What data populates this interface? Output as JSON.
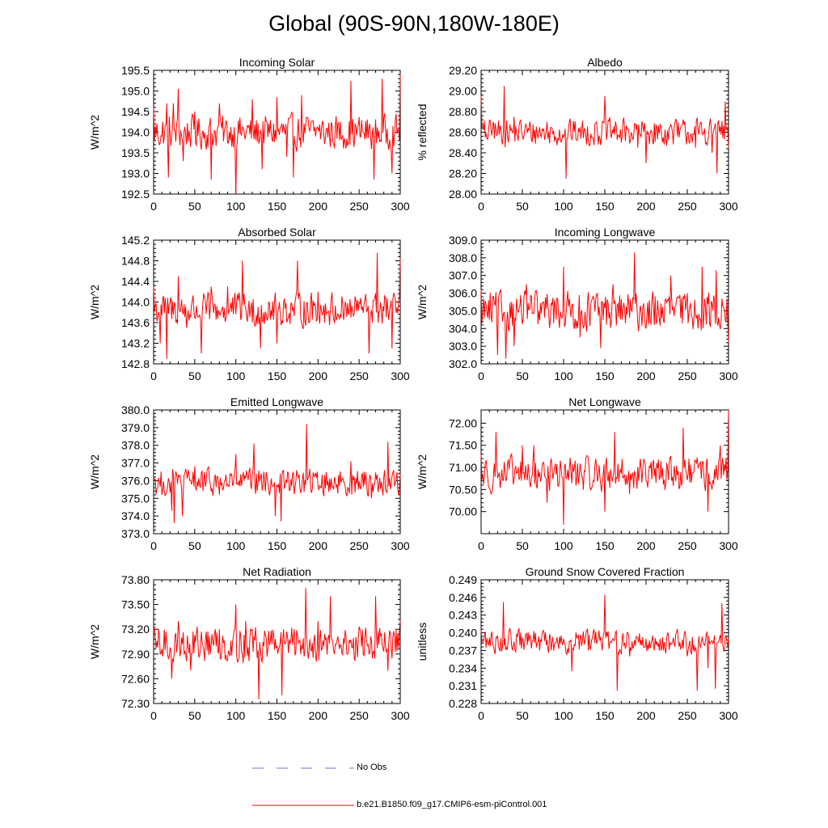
{
  "figure": {
    "title": "Global (90S-90N,180W-180E)",
    "line_color": "#ff0000",
    "obs_color": "#6a73d6"
  },
  "legend": {
    "obs_label": "No Obs",
    "model_label": "b.e21.B1850.f09_g17.CMIP6-esm-piControl.001"
  },
  "chart_data": [
    {
      "type": "line",
      "title": "Incoming Solar",
      "xlabel": "",
      "ylabel": "W/m^2",
      "xlim": [
        0,
        300
      ],
      "ylim": [
        192.5,
        195.5
      ],
      "x_ticks": [
        0,
        50,
        100,
        150,
        200,
        250,
        300
      ],
      "y_ticks": [
        192.5,
        193.0,
        193.5,
        194.0,
        194.5,
        195.0,
        195.5
      ],
      "y_tick_labels": [
        "192.5",
        "193.0",
        "193.5",
        "194.0",
        "194.5",
        "195.0",
        "195.5"
      ],
      "baseline": 194.0,
      "noise": 0.38,
      "keypoints": [
        [
          0,
          194.6
        ],
        [
          10,
          193.9
        ],
        [
          16,
          194.7
        ],
        [
          18,
          192.9
        ],
        [
          24,
          194.7
        ],
        [
          30,
          195.05
        ],
        [
          36,
          193.3
        ],
        [
          50,
          194.5
        ],
        [
          62,
          194.0
        ],
        [
          70,
          192.85
        ],
        [
          80,
          194.7
        ],
        [
          100,
          192.5
        ],
        [
          120,
          194.8
        ],
        [
          132,
          193.1
        ],
        [
          150,
          194.85
        ],
        [
          162,
          193.4
        ],
        [
          170,
          192.9
        ],
        [
          180,
          194.9
        ],
        [
          200,
          194.1
        ],
        [
          240,
          195.25
        ],
        [
          255,
          194.0
        ],
        [
          268,
          192.85
        ],
        [
          278,
          195.3
        ],
        [
          290,
          193.0
        ],
        [
          300,
          195.4
        ]
      ],
      "series": [
        {
          "name": "b.e21.B1850.f09_g17.CMIP6-esm-piControl.001",
          "color": "#ff0000"
        }
      ]
    },
    {
      "type": "line",
      "title": "Albedo",
      "xlabel": "",
      "ylabel": "% reflected",
      "xlim": [
        0,
        300
      ],
      "ylim": [
        28.0,
        29.2
      ],
      "x_ticks": [
        0,
        50,
        100,
        150,
        200,
        250,
        300
      ],
      "y_ticks": [
        28.0,
        28.2,
        28.4,
        28.6,
        28.8,
        29.0,
        29.2
      ],
      "y_tick_labels": [
        "28.00",
        "28.20",
        "28.40",
        "28.60",
        "28.80",
        "29.00",
        "29.20"
      ],
      "baseline": 28.6,
      "noise": 0.12,
      "keypoints": [
        [
          0,
          28.95
        ],
        [
          5,
          28.55
        ],
        [
          15,
          28.7
        ],
        [
          28,
          29.05
        ],
        [
          40,
          28.75
        ],
        [
          60,
          28.65
        ],
        [
          80,
          28.7
        ],
        [
          100,
          28.55
        ],
        [
          103,
          28.15
        ],
        [
          120,
          28.65
        ],
        [
          140,
          28.7
        ],
        [
          150,
          28.95
        ],
        [
          170,
          28.5
        ],
        [
          190,
          28.45
        ],
        [
          200,
          28.3
        ],
        [
          220,
          28.5
        ],
        [
          240,
          28.55
        ],
        [
          260,
          28.45
        ],
        [
          280,
          28.4
        ],
        [
          286,
          28.2
        ],
        [
          296,
          28.9
        ],
        [
          300,
          28.45
        ]
      ],
      "series": [
        {
          "name": "b.e21.B1850.f09_g17.CMIP6-esm-piControl.001",
          "color": "#ff0000"
        }
      ]
    },
    {
      "type": "line",
      "title": "Absorbed Solar",
      "xlabel": "",
      "ylabel": "W/m^2",
      "xlim": [
        0,
        300
      ],
      "ylim": [
        142.8,
        145.2
      ],
      "x_ticks": [
        0,
        50,
        100,
        150,
        200,
        250,
        300
      ],
      "y_ticks": [
        142.8,
        143.2,
        143.6,
        144.0,
        144.4,
        144.8,
        145.2
      ],
      "y_tick_labels": [
        "142.8",
        "143.2",
        "143.6",
        "144.0",
        "144.4",
        "144.8",
        "145.2"
      ],
      "baseline": 143.85,
      "noise": 0.3,
      "keypoints": [
        [
          0,
          144.3
        ],
        [
          8,
          143.2
        ],
        [
          16,
          142.9
        ],
        [
          30,
          144.5
        ],
        [
          40,
          143.5
        ],
        [
          58,
          143.0
        ],
        [
          70,
          144.3
        ],
        [
          90,
          144.3
        ],
        [
          108,
          144.8
        ],
        [
          120,
          143.6
        ],
        [
          130,
          143.1
        ],
        [
          140,
          144.0
        ],
        [
          150,
          143.2
        ],
        [
          175,
          144.8
        ],
        [
          200,
          144.2
        ],
        [
          230,
          144.0
        ],
        [
          250,
          144.0
        ],
        [
          262,
          143.0
        ],
        [
          272,
          144.95
        ],
        [
          290,
          143.1
        ],
        [
          300,
          144.85
        ]
      ],
      "series": [
        {
          "name": "b.e21.B1850.f09_g17.CMIP6-esm-piControl.001",
          "color": "#ff0000"
        }
      ]
    },
    {
      "type": "line",
      "title": "Incoming Longwave",
      "xlabel": "",
      "ylabel": "W/m^2",
      "xlim": [
        0,
        300
      ],
      "ylim": [
        302.0,
        309.0
      ],
      "x_ticks": [
        0,
        50,
        100,
        150,
        200,
        250,
        300
      ],
      "y_ticks": [
        302.0,
        303.0,
        304.0,
        305.0,
        306.0,
        307.0,
        308.0,
        309.0
      ],
      "y_tick_labels": [
        "302.0",
        "303.0",
        "304.0",
        "305.0",
        "306.0",
        "307.0",
        "308.0",
        "309.0"
      ],
      "baseline": 305.0,
      "noise": 1.0,
      "keypoints": [
        [
          0,
          306.2
        ],
        [
          10,
          304.5
        ],
        [
          20,
          302.5
        ],
        [
          30,
          302.3
        ],
        [
          40,
          303.0
        ],
        [
          55,
          306.5
        ],
        [
          70,
          305.0
        ],
        [
          90,
          305.2
        ],
        [
          100,
          307.5
        ],
        [
          120,
          303.5
        ],
        [
          145,
          302.9
        ],
        [
          160,
          306.5
        ],
        [
          186,
          308.3
        ],
        [
          200,
          304.0
        ],
        [
          210,
          304.2
        ],
        [
          230,
          307.0
        ],
        [
          250,
          306.0
        ],
        [
          268,
          307.5
        ],
        [
          285,
          307.3
        ],
        [
          300,
          303.2
        ]
      ],
      "series": [
        {
          "name": "b.e21.B1850.f09_g17.CMIP6-esm-piControl.001",
          "color": "#ff0000"
        }
      ]
    },
    {
      "type": "line",
      "title": "Emitted Longwave",
      "xlabel": "",
      "ylabel": "W/m^2",
      "xlim": [
        0,
        300
      ],
      "ylim": [
        373.0,
        380.0
      ],
      "x_ticks": [
        0,
        50,
        100,
        150,
        200,
        250,
        300
      ],
      "y_ticks": [
        373.0,
        374.0,
        375.0,
        376.0,
        377.0,
        378.0,
        379.0,
        380.0
      ],
      "y_tick_labels": [
        "373.0",
        "374.0",
        "375.0",
        "376.0",
        "377.0",
        "378.0",
        "379.0",
        "380.0"
      ],
      "baseline": 375.9,
      "noise": 0.7,
      "keypoints": [
        [
          0,
          376.2
        ],
        [
          10,
          375.2
        ],
        [
          22,
          374.3
        ],
        [
          25,
          373.6
        ],
        [
          35,
          374.0
        ],
        [
          50,
          376.8
        ],
        [
          80,
          375.2
        ],
        [
          100,
          377.5
        ],
        [
          122,
          378.1
        ],
        [
          130,
          376.2
        ],
        [
          148,
          374.0
        ],
        [
          155,
          373.7
        ],
        [
          170,
          376.5
        ],
        [
          186,
          379.2
        ],
        [
          200,
          375.6
        ],
        [
          220,
          376.2
        ],
        [
          240,
          377.1
        ],
        [
          265,
          375.0
        ],
        [
          285,
          378.2
        ],
        [
          300,
          376.4
        ]
      ],
      "series": [
        {
          "name": "b.e21.B1850.f09_g17.CMIP6-esm-piControl.001",
          "color": "#ff0000"
        }
      ]
    },
    {
      "type": "line",
      "title": "Net Longwave",
      "xlabel": "",
      "ylabel": "W/m^2",
      "xlim": [
        0,
        300
      ],
      "ylim": [
        69.5,
        72.3
      ],
      "x_ticks": [
        0,
        50,
        100,
        150,
        200,
        250,
        300
      ],
      "y_ticks": [
        70.0,
        70.5,
        71.0,
        71.5,
        72.0
      ],
      "y_tick_labels": [
        "70.00",
        "70.50",
        "71.00",
        "71.50",
        "72.00"
      ],
      "baseline": 70.85,
      "noise": 0.35,
      "keypoints": [
        [
          0,
          71.3
        ],
        [
          12,
          70.4
        ],
        [
          18,
          71.8
        ],
        [
          30,
          70.7
        ],
        [
          50,
          71.5
        ],
        [
          64,
          71.5
        ],
        [
          80,
          70.2
        ],
        [
          100,
          69.7
        ],
        [
          112,
          70.9
        ],
        [
          140,
          71.0
        ],
        [
          150,
          70.0
        ],
        [
          162,
          71.8
        ],
        [
          180,
          70.4
        ],
        [
          200,
          70.7
        ],
        [
          225,
          71.1
        ],
        [
          245,
          71.9
        ],
        [
          258,
          70.9
        ],
        [
          275,
          70.0
        ],
        [
          290,
          71.5
        ],
        [
          300,
          72.3
        ]
      ],
      "series": [
        {
          "name": "b.e21.B1850.f09_g17.CMIP6-esm-piControl.001",
          "color": "#ff0000"
        }
      ]
    },
    {
      "type": "line",
      "title": "Net Radiation",
      "xlabel": "",
      "ylabel": "W/m^2",
      "xlim": [
        0,
        300
      ],
      "ylim": [
        72.3,
        73.8
      ],
      "x_ticks": [
        0,
        50,
        100,
        150,
        200,
        250,
        300
      ],
      "y_ticks": [
        72.3,
        72.6,
        72.9,
        73.2,
        73.5,
        73.8
      ],
      "y_tick_labels": [
        "72.30",
        "72.60",
        "72.90",
        "73.20",
        "73.50",
        "73.80"
      ],
      "baseline": 73.02,
      "noise": 0.2,
      "keypoints": [
        [
          0,
          73.2
        ],
        [
          8,
          72.9
        ],
        [
          22,
          72.6
        ],
        [
          30,
          73.3
        ],
        [
          45,
          72.7
        ],
        [
          60,
          73.0
        ],
        [
          80,
          73.2
        ],
        [
          100,
          73.5
        ],
        [
          112,
          73.3
        ],
        [
          128,
          72.35
        ],
        [
          150,
          73.0
        ],
        [
          156,
          72.4
        ],
        [
          170,
          73.1
        ],
        [
          185,
          73.7
        ],
        [
          200,
          73.3
        ],
        [
          215,
          73.6
        ],
        [
          235,
          72.9
        ],
        [
          260,
          73.0
        ],
        [
          270,
          73.6
        ],
        [
          285,
          72.7
        ],
        [
          300,
          73.3
        ]
      ],
      "series": [
        {
          "name": "b.e21.B1850.f09_g17.CMIP6-esm-piControl.001",
          "color": "#ff0000"
        }
      ]
    },
    {
      "type": "line",
      "title": "Ground Snow Covered Fraction",
      "xlabel": "",
      "ylabel": "unitless",
      "xlim": [
        0,
        300
      ],
      "ylim": [
        0.228,
        0.249
      ],
      "x_ticks": [
        0,
        50,
        100,
        150,
        200,
        250,
        300
      ],
      "y_ticks": [
        0.228,
        0.231,
        0.234,
        0.237,
        0.24,
        0.243,
        0.246,
        0.249
      ],
      "y_tick_labels": [
        "0.228",
        "0.231",
        "0.234",
        "0.237",
        "0.240",
        "0.243",
        "0.246",
        "0.249"
      ],
      "baseline": 0.2385,
      "noise": 0.0018,
      "keypoints": [
        [
          0,
          0.2405
        ],
        [
          20,
          0.2395
        ],
        [
          27,
          0.2452
        ],
        [
          40,
          0.2385
        ],
        [
          60,
          0.2392
        ],
        [
          80,
          0.2388
        ],
        [
          100,
          0.239
        ],
        [
          110,
          0.2335
        ],
        [
          130,
          0.237
        ],
        [
          150,
          0.2465
        ],
        [
          160,
          0.239
        ],
        [
          165,
          0.2302
        ],
        [
          180,
          0.236
        ],
        [
          200,
          0.239
        ],
        [
          210,
          0.237
        ],
        [
          230,
          0.238
        ],
        [
          250,
          0.236
        ],
        [
          262,
          0.2302
        ],
        [
          275,
          0.234
        ],
        [
          284,
          0.2305
        ],
        [
          292,
          0.245
        ],
        [
          300,
          0.239
        ]
      ],
      "series": [
        {
          "name": "b.e21.B1850.f09_g17.CMIP6-esm-piControl.001",
          "color": "#ff0000"
        }
      ]
    }
  ]
}
